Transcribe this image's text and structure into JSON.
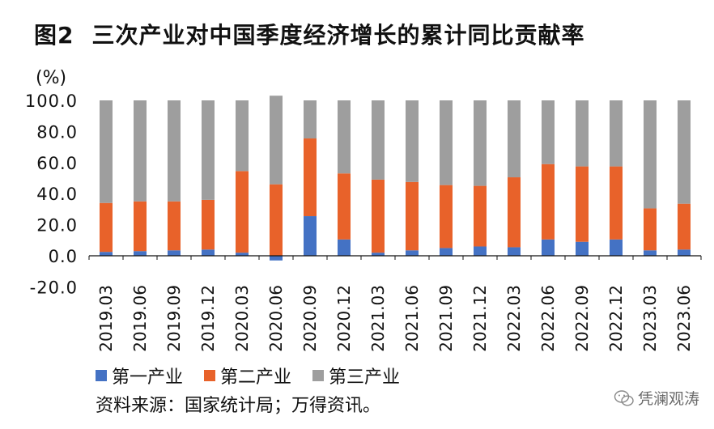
{
  "title": {
    "number": "图2",
    "text": "三次产业对中国季度经济增长的累计同比贡献率"
  },
  "source": "资料来源：国家统计局；万得资讯。",
  "watermark": {
    "text": "凭澜观涛",
    "icon": "wechat-icon"
  },
  "colors": {
    "primary": "#4472C4",
    "secondary": "#E8622A",
    "tertiary": "#9E9E9E"
  },
  "chart_data": {
    "type": "bar",
    "stacked": true,
    "y_unit": "(%)",
    "ylim": [
      -20,
      100
    ],
    "y_ticks": [
      "100.0",
      "80.0",
      "60.0",
      "40.0",
      "20.0",
      "0.0",
      "-20.0"
    ],
    "y_tick_values": [
      100,
      80,
      60,
      40,
      20,
      0,
      -20
    ],
    "grid": false,
    "legend_position": "bottom",
    "categories": [
      "2019.03",
      "2019.06",
      "2019.09",
      "2019.12",
      "2020.03",
      "2020.06",
      "2020.09",
      "2020.12",
      "2021.03",
      "2021.06",
      "2021.09",
      "2021.12",
      "2022.03",
      "2022.06",
      "2022.09",
      "2022.12",
      "2023.03",
      "2023.06"
    ],
    "series": [
      {
        "name": "第一产业",
        "color": "#4472C4",
        "values": [
          2.5,
          3,
          3.5,
          4,
          2,
          -3,
          25.5,
          10.5,
          2,
          3.5,
          5,
          6,
          5.5,
          10.5,
          9,
          10.5,
          3.5,
          4
        ]
      },
      {
        "name": "第二产业",
        "color": "#E8622A",
        "values": [
          31.5,
          32,
          31.5,
          32,
          52.5,
          46,
          50,
          42.5,
          47,
          44,
          40.5,
          39,
          45,
          48.5,
          48.5,
          47,
          27,
          29.5
        ]
      },
      {
        "name": "第三产业",
        "color": "#9E9E9E",
        "values": [
          66,
          65,
          65,
          64,
          45.5,
          57,
          24.5,
          47,
          51,
          52.5,
          54.5,
          55,
          49.5,
          41,
          42.5,
          42.5,
          69.5,
          66.5
        ]
      }
    ]
  }
}
